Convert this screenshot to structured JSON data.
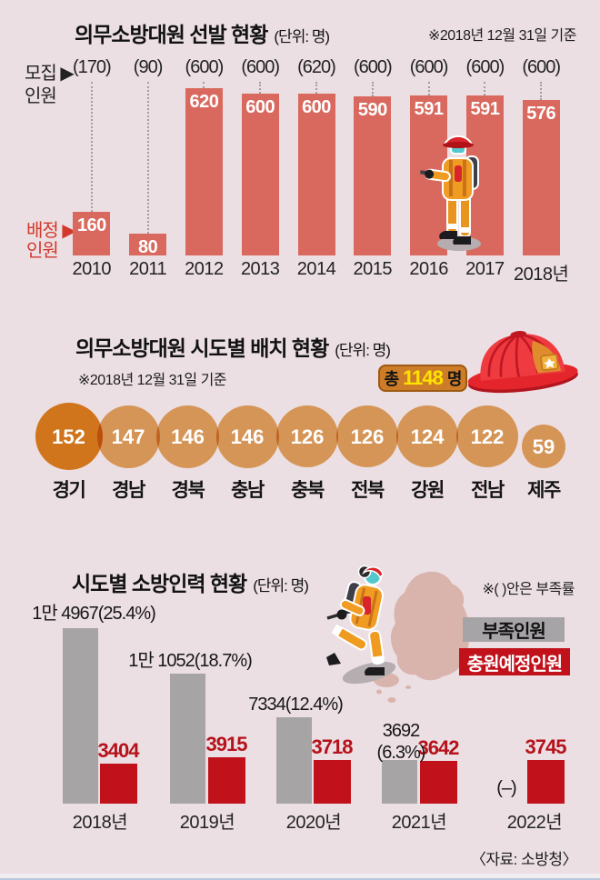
{
  "page": {
    "background": "#ecdfe3",
    "source": "〈자료: 소방청〉"
  },
  "section1": {
    "title": "의무소방대원 선발 현황",
    "unit": "(단위: 명)",
    "note": "※2018년 12월 31일 기준",
    "row_top_line1": "모집 ▶",
    "row_top_line2": "인원",
    "row_bottom_line1": "배정 ▶",
    "row_bottom_line2": "인원"
  },
  "section2": {
    "title": "의무소방대원 시도별 배치 현황",
    "unit": "(단위: 명)",
    "note": "※2018년 12월 31일 기준",
    "total_prefix": "총",
    "total_value": "1148",
    "total_suffix": "명"
  },
  "section3": {
    "title": "시도별 소방인력 현황",
    "unit": "(단위: 명)",
    "note": "※(  )안은 부족률",
    "legend": [
      {
        "label": "부족인원",
        "color": "#a7a4a7",
        "text_color": "#111111"
      },
      {
        "label": "충원예정인원",
        "color": "#c1121c",
        "text_color": "#ffffff"
      }
    ]
  },
  "colors": {
    "background": "#ecdfe3",
    "salmon_bar": "#d9695e",
    "gray_bar": "#a7a4a5",
    "red_bar": "#c1121c",
    "red_value_text": "#b5121b",
    "circle_main": "#d59557",
    "circle_first": "#d0761b",
    "badge_bg": "#cd7c28",
    "badge_value": "#ffe400"
  },
  "chart_data": [
    {
      "type": "bar",
      "title": "의무소방대원 선발 현황",
      "ylabel": "명",
      "categories": [
        "2010",
        "2011",
        "2012",
        "2013",
        "2014",
        "2015",
        "2016",
        "2017",
        "2018년"
      ],
      "series": [
        {
          "name": "모집인원",
          "values": [
            170,
            90,
            600,
            600,
            620,
            600,
            600,
            600,
            600
          ],
          "display": [
            "(170)",
            "(90)",
            "(600)",
            "(600)",
            "(620)",
            "(600)",
            "(600)",
            "(600)",
            "(600)"
          ]
        },
        {
          "name": "배정인원",
          "values": [
            160,
            80,
            620,
            600,
            600,
            590,
            591,
            591,
            576
          ]
        }
      ],
      "legend_position": "left",
      "grid": false
    },
    {
      "type": "bubble",
      "title": "의무소방대원 시도별 배치 현황",
      "ylabel": "명",
      "total": 1148,
      "categories": [
        "경기",
        "경남",
        "경북",
        "충남",
        "충북",
        "전북",
        "강원",
        "전남",
        "제주"
      ],
      "values": [
        152,
        147,
        146,
        146,
        126,
        126,
        124,
        122,
        59
      ]
    },
    {
      "type": "bar",
      "title": "시도별 소방인력 현황",
      "ylabel": "명",
      "categories": [
        "2018년",
        "2019년",
        "2020년",
        "2021년",
        "2022년"
      ],
      "series": [
        {
          "name": "부족인원",
          "values": [
            14967,
            11052,
            7334,
            3692,
            null
          ],
          "display": [
            "1만 4967(25.4%)",
            "1만 1052(18.7%)",
            "7334(12.4%)",
            "3692|(6.3%)",
            "(–)"
          ]
        },
        {
          "name": "충원예정인원",
          "values": [
            3404,
            3915,
            3718,
            3642,
            3745
          ]
        }
      ],
      "legend_position": "right",
      "grid": false
    }
  ]
}
